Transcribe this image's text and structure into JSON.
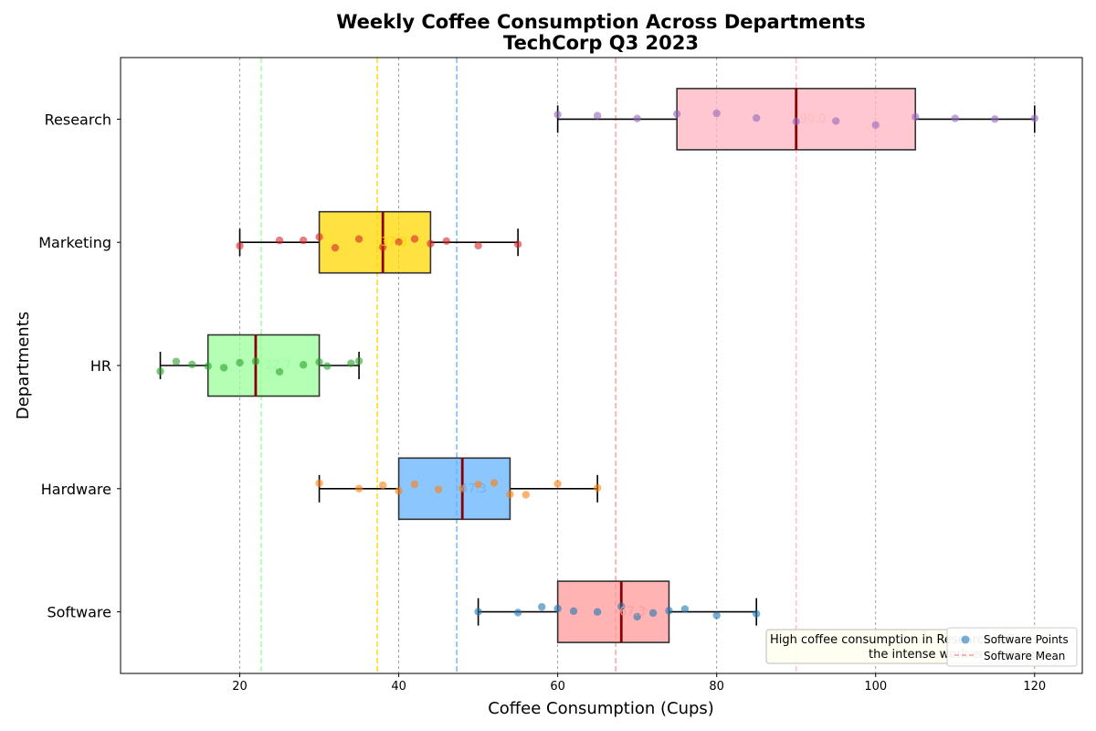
{
  "chart_data": {
    "type": "box",
    "title": "Weekly Coffee Consumption Across Departments",
    "subtitle": "TechCorp Q3 2023",
    "xlabel": "Coffee Consumption (Cups)",
    "ylabel": "Departments",
    "xlim": [
      5,
      126
    ],
    "xticks": [
      20,
      40,
      60,
      80,
      100,
      120
    ],
    "grid": "x-dashed",
    "categories": [
      "Software",
      "Hardware",
      "HR",
      "Marketing",
      "Research"
    ],
    "series": [
      {
        "category": "Software",
        "color": "#ff9999",
        "point_color": "#1f77b4",
        "whisker_low": 50,
        "q1": 60,
        "median": 68,
        "q3": 74,
        "whisker_high": 85,
        "mean": 67.3,
        "mean_label": "67.3",
        "points": [
          50,
          55,
          58,
          60,
          62,
          65,
          68,
          70,
          72,
          74,
          76,
          80,
          85
        ]
      },
      {
        "category": "Hardware",
        "color": "#66b3ff",
        "point_color": "#ff7f0e",
        "whisker_low": 30,
        "q1": 40,
        "median": 48,
        "q3": 54,
        "whisker_high": 65,
        "mean": 47.3,
        "mean_label": "47.3",
        "points": [
          30,
          35,
          38,
          40,
          42,
          45,
          48,
          50,
          52,
          54,
          56,
          60,
          65
        ]
      },
      {
        "category": "HR",
        "color": "#99ff99",
        "point_color": "#2ca02c",
        "whisker_low": 10,
        "q1": 16,
        "median": 22,
        "q3": 30,
        "whisker_high": 35,
        "mean": 22.7,
        "mean_label": "22.7",
        "points": [
          10,
          12,
          14,
          16,
          18,
          20,
          22,
          25,
          28,
          30,
          31,
          34,
          35
        ]
      },
      {
        "category": "Marketing",
        "color": "#ffd700",
        "point_color": "#d62728",
        "whisker_low": 20,
        "q1": 30,
        "median": 38,
        "q3": 44,
        "whisker_high": 55,
        "mean": 37.3,
        "mean_label": "37.3",
        "points": [
          20,
          25,
          28,
          30,
          32,
          35,
          38,
          40,
          42,
          44,
          46,
          50,
          55
        ]
      },
      {
        "category": "Research",
        "color": "#ffb6c1",
        "point_color": "#9467bd",
        "whisker_low": 60,
        "q1": 75,
        "median": 90,
        "q3": 105,
        "whisker_high": 120,
        "mean": 90.0,
        "mean_label": "90.0",
        "points": [
          60,
          65,
          70,
          75,
          80,
          85,
          90,
          95,
          100,
          105,
          110,
          115,
          120
        ]
      }
    ],
    "legend": {
      "position": "lower-right",
      "entries": [
        "Software Points",
        "Software Mean"
      ]
    },
    "annotation": {
      "line1": "High coffee consumption in Research reflects",
      "line2": "the intense work environment"
    }
  }
}
